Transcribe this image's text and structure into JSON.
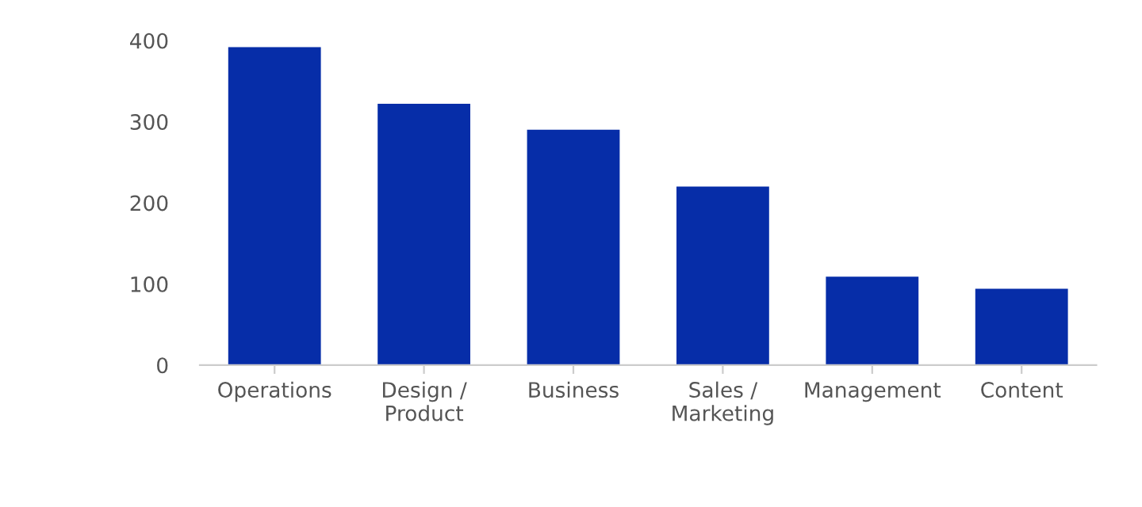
{
  "chart_data": {
    "type": "bar",
    "categories": [
      "Operations",
      "Design /\nProduct",
      "Business",
      "Sales /\nMarketing",
      "Management",
      "Content"
    ],
    "values": [
      392,
      322,
      290,
      220,
      109,
      94
    ],
    "color": "#062da8",
    "ylim": [
      0,
      400
    ],
    "yticks": [
      0,
      100,
      200,
      300,
      400
    ],
    "grid": false
  }
}
